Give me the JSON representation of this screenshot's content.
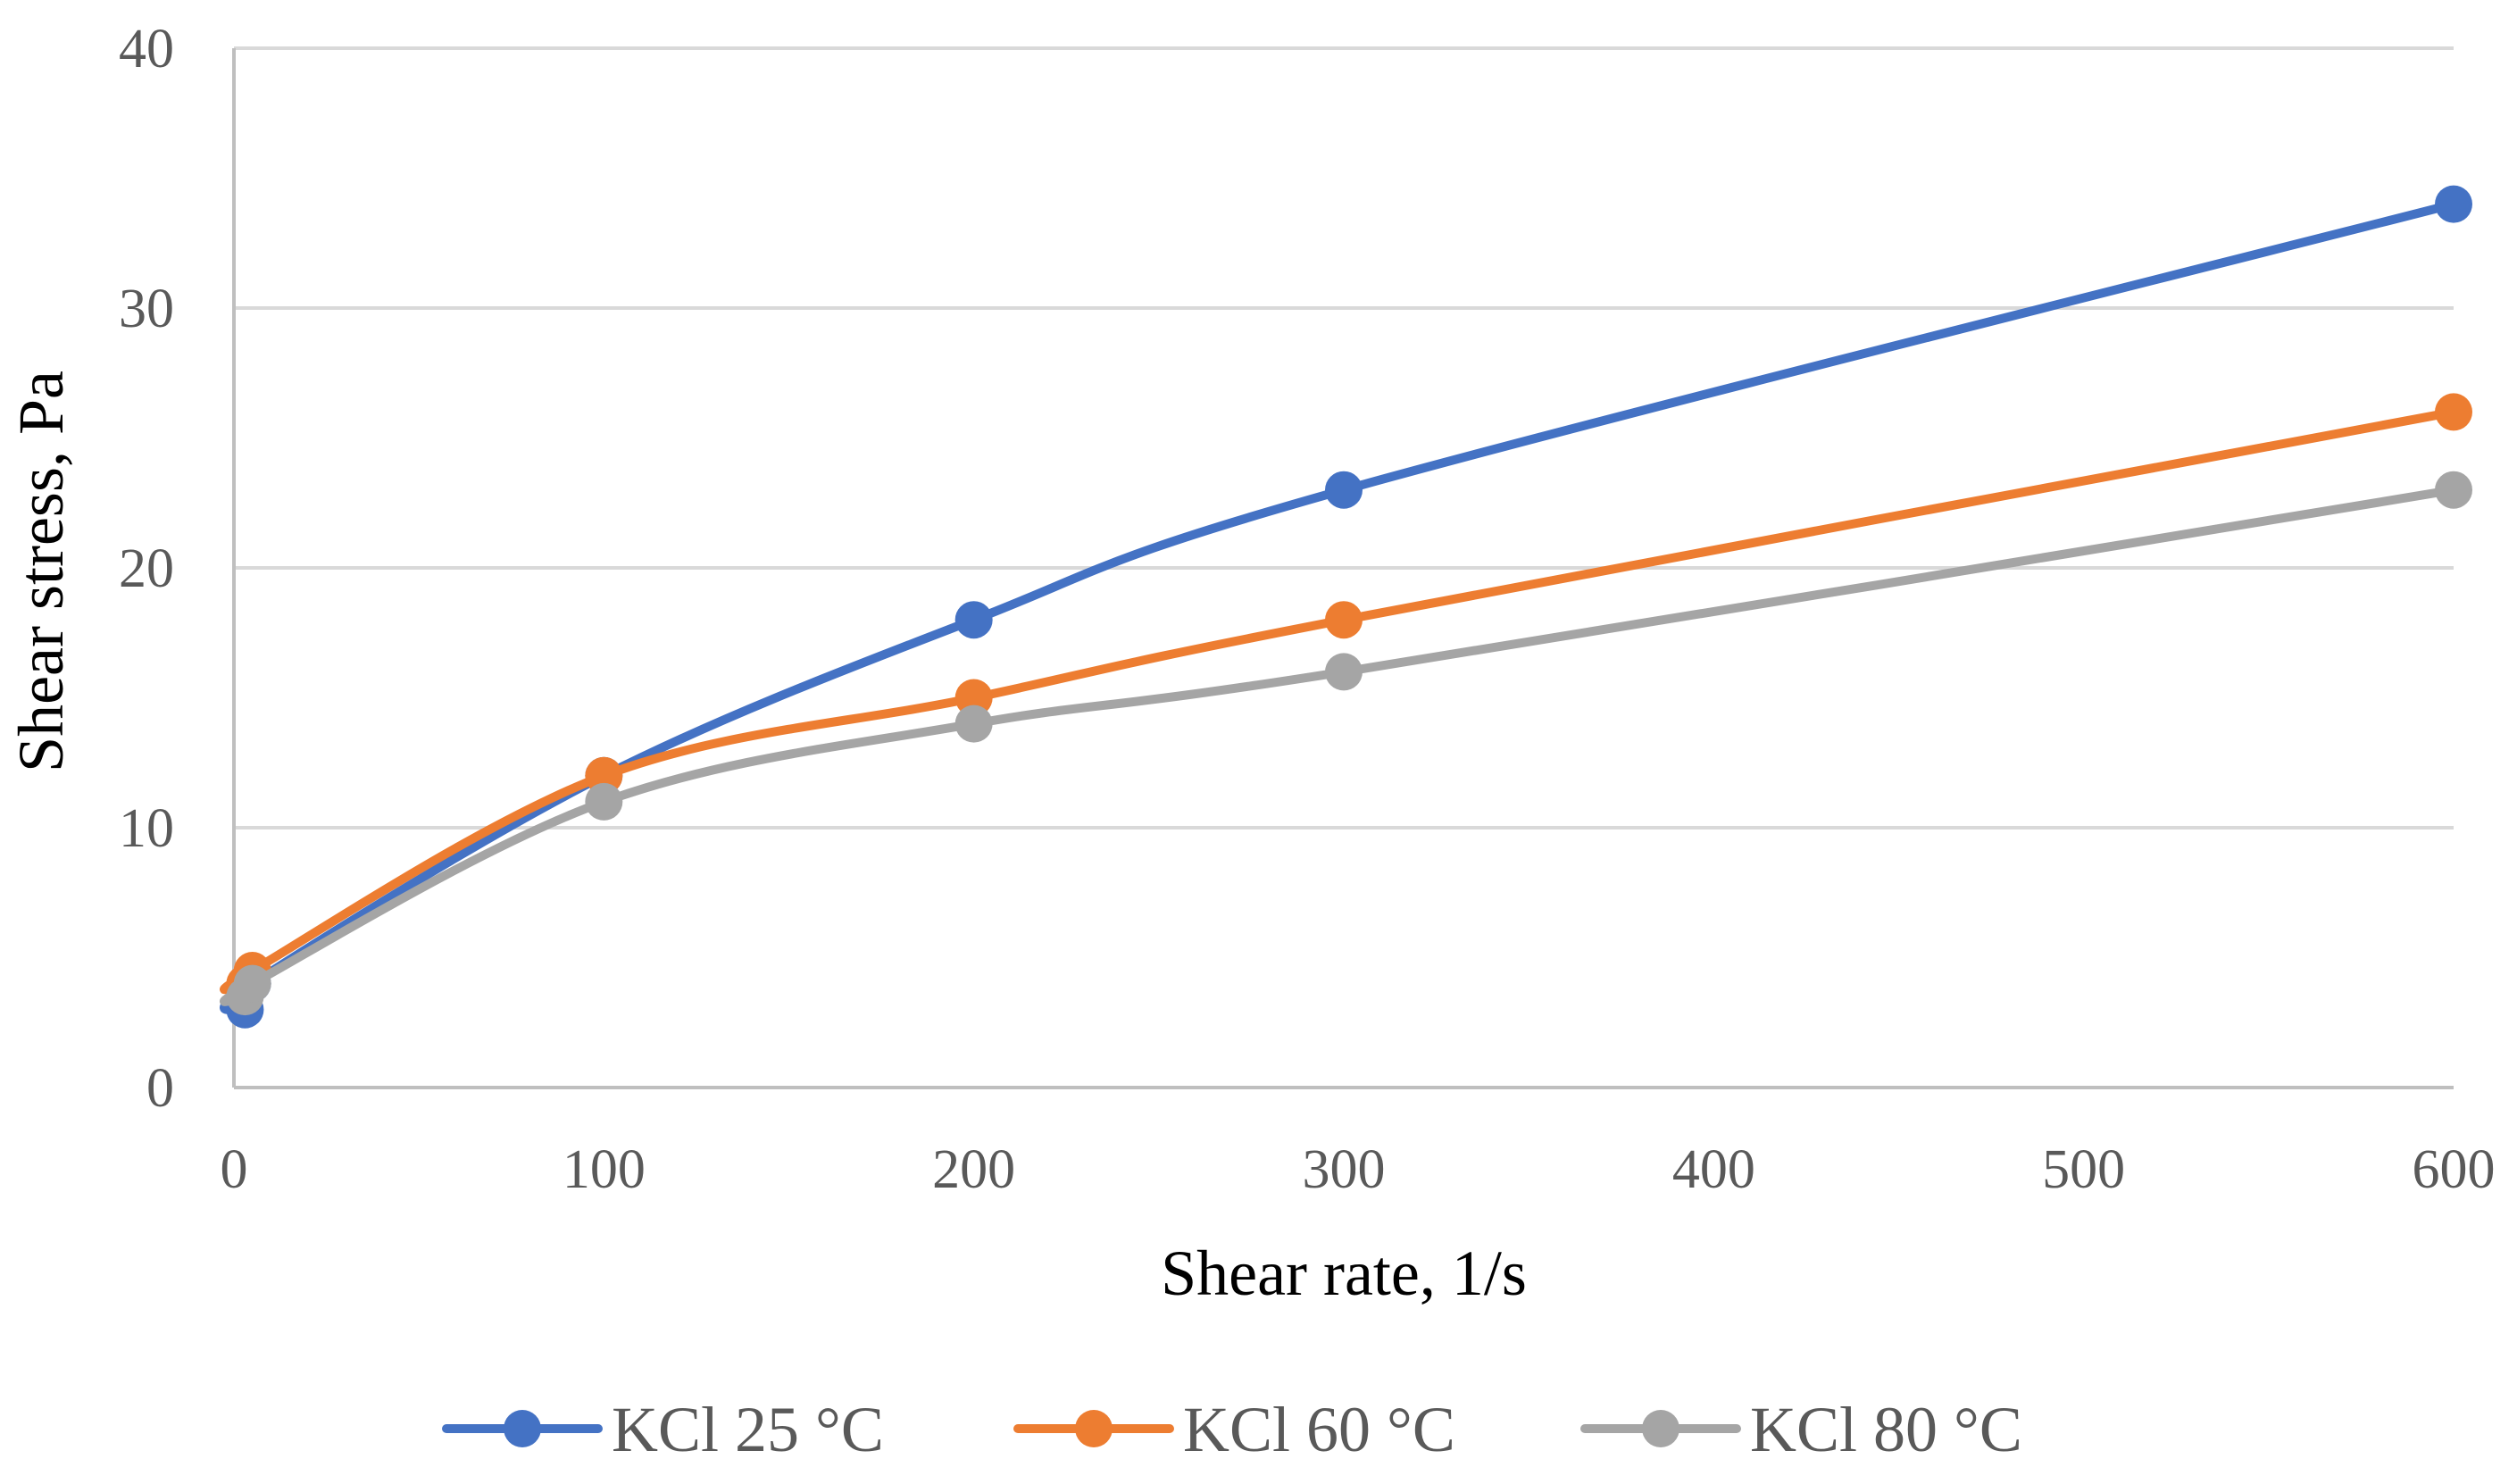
{
  "chart_data": {
    "type": "line",
    "title": "",
    "xlabel": "Shear rate, 1/s",
    "ylabel": "Shear stress, Pa",
    "xlim": [
      0,
      600
    ],
    "ylim": [
      0,
      40
    ],
    "x_ticks": [
      0,
      100,
      200,
      300,
      400,
      500,
      600
    ],
    "x_tick_labels": [
      "0",
      "100",
      "200",
      "300",
      "400",
      "500",
      "600"
    ],
    "y_ticks": [
      0,
      10,
      20,
      30,
      40
    ],
    "y_tick_labels": [
      "0",
      "10",
      "20",
      "30",
      "40"
    ],
    "grid": "horizontal",
    "legend_position": "bottom",
    "smooth": true,
    "series": [
      {
        "name": "KCl 25 °C",
        "color": "#4472C4",
        "x": [
          3,
          5,
          100,
          200,
          300,
          600
        ],
        "y": [
          3,
          4,
          12,
          18,
          23,
          34
        ]
      },
      {
        "name": "KCl 60 °C",
        "color": "#ED7D31",
        "x": [
          3,
          5,
          100,
          200,
          300,
          600
        ],
        "y": [
          4,
          4.5,
          12,
          15,
          18,
          26
        ]
      },
      {
        "name": "KCl 80 °C",
        "color": "#A5A5A5",
        "x": [
          3,
          5,
          100,
          200,
          300,
          600
        ],
        "y": [
          3.5,
          4,
          11,
          14,
          16,
          23
        ]
      }
    ]
  },
  "style": {
    "grid_color": "#D9D9D9",
    "axis_color": "#BFBFBF"
  }
}
